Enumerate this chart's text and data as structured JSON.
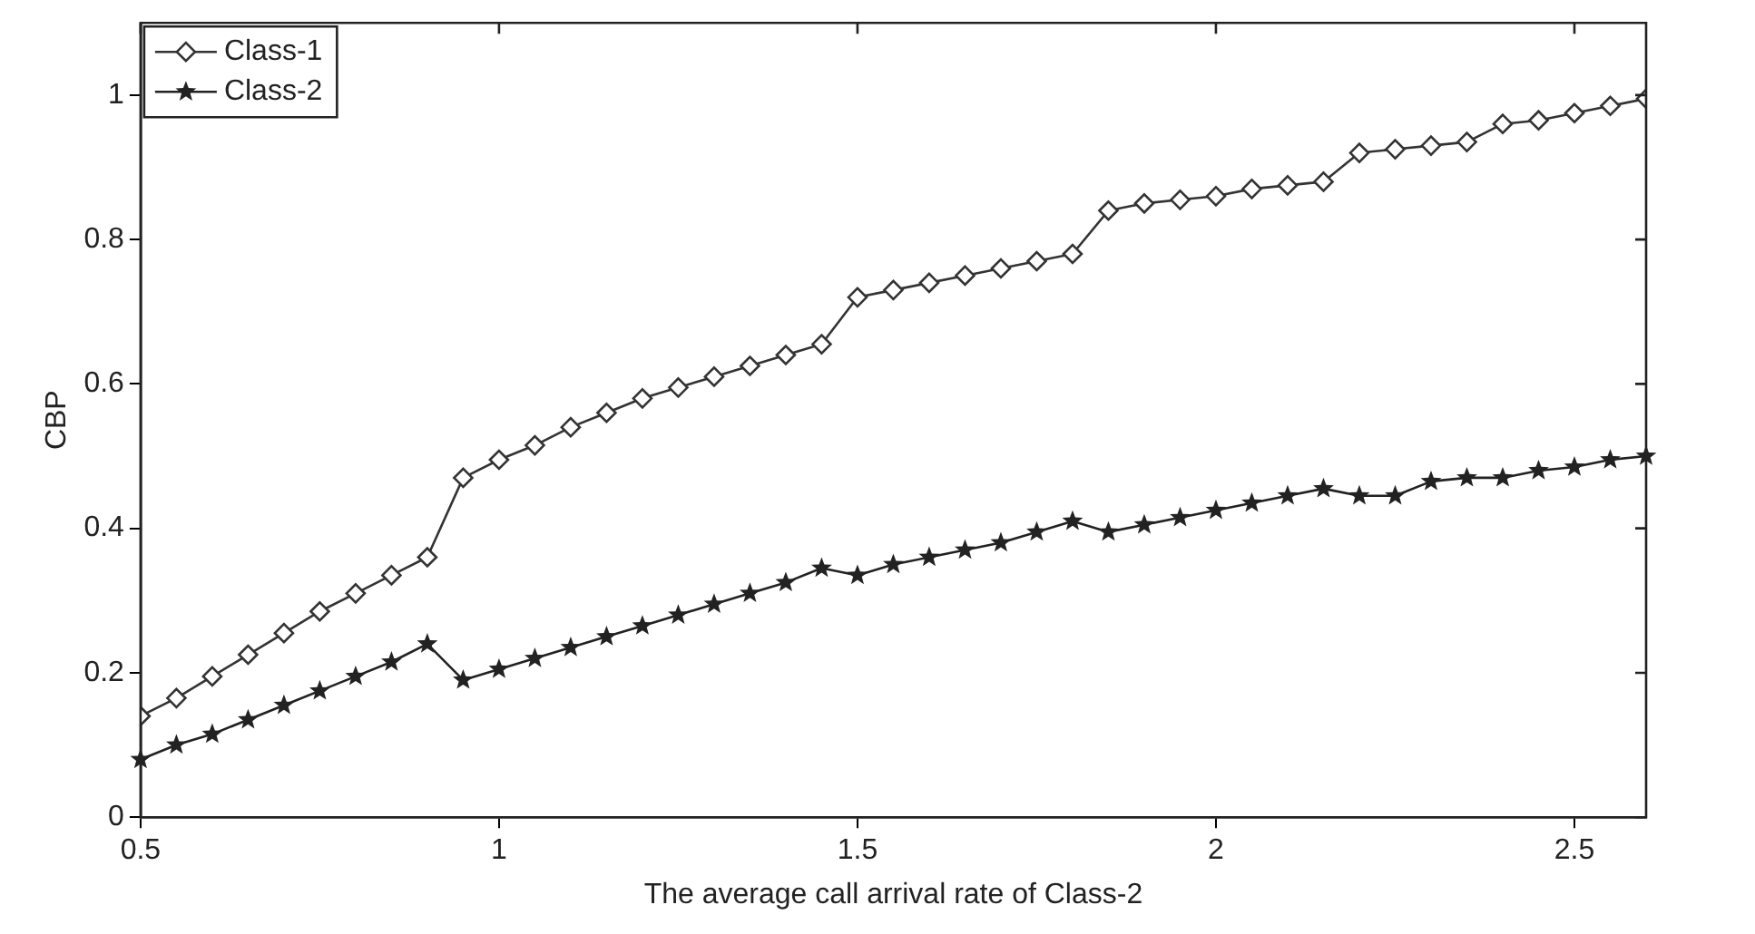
{
  "chart_data": {
    "type": "line",
    "xlabel": "The average call arrival rate of Class-2",
    "ylabel": "CBP",
    "x": [
      0.5,
      0.55,
      0.6,
      0.65,
      0.7,
      0.75,
      0.8,
      0.85,
      0.9,
      0.95,
      1.0,
      1.05,
      1.1,
      1.15,
      1.2,
      1.25,
      1.3,
      1.35,
      1.4,
      1.45,
      1.5,
      1.55,
      1.6,
      1.65,
      1.7,
      1.75,
      1.8,
      1.85,
      1.9,
      1.95,
      2.0,
      2.05,
      2.1,
      2.15,
      2.2,
      2.25,
      2.3,
      2.35,
      2.4,
      2.45,
      2.5,
      2.55,
      2.6
    ],
    "series": [
      {
        "name": "Class-1",
        "color": "#333333",
        "marker": "diamond",
        "values": [
          0.14,
          0.165,
          0.195,
          0.225,
          0.255,
          0.285,
          0.31,
          0.335,
          0.36,
          0.47,
          0.495,
          0.515,
          0.54,
          0.56,
          0.58,
          0.595,
          0.61,
          0.625,
          0.64,
          0.655,
          0.72,
          0.73,
          0.74,
          0.75,
          0.76,
          0.77,
          0.78,
          0.84,
          0.85,
          0.855,
          0.86,
          0.87,
          0.875,
          0.88,
          0.92,
          0.925,
          0.93,
          0.935,
          0.96,
          0.965,
          0.975,
          0.985,
          0.995
        ]
      },
      {
        "name": "Class-2",
        "color": "#222222",
        "marker": "star",
        "values": [
          0.08,
          0.1,
          0.115,
          0.135,
          0.155,
          0.175,
          0.195,
          0.215,
          0.24,
          0.19,
          0.205,
          0.22,
          0.235,
          0.25,
          0.265,
          0.28,
          0.295,
          0.31,
          0.325,
          0.345,
          0.335,
          0.35,
          0.36,
          0.37,
          0.38,
          0.395,
          0.41,
          0.395,
          0.405,
          0.415,
          0.425,
          0.435,
          0.445,
          0.455,
          0.445,
          0.445,
          0.465,
          0.47,
          0.47,
          0.48,
          0.485,
          0.495,
          0.5
        ]
      }
    ],
    "xlim": [
      0.5,
      2.6
    ],
    "xticks": [
      0.5,
      1,
      1.5,
      2,
      2.5
    ],
    "ylim": [
      0,
      1.1
    ],
    "yticks": [
      0,
      0.2,
      0.4,
      0.6,
      0.8,
      1
    ],
    "grid": false,
    "legend": "top left",
    "line_style": "solid"
  }
}
